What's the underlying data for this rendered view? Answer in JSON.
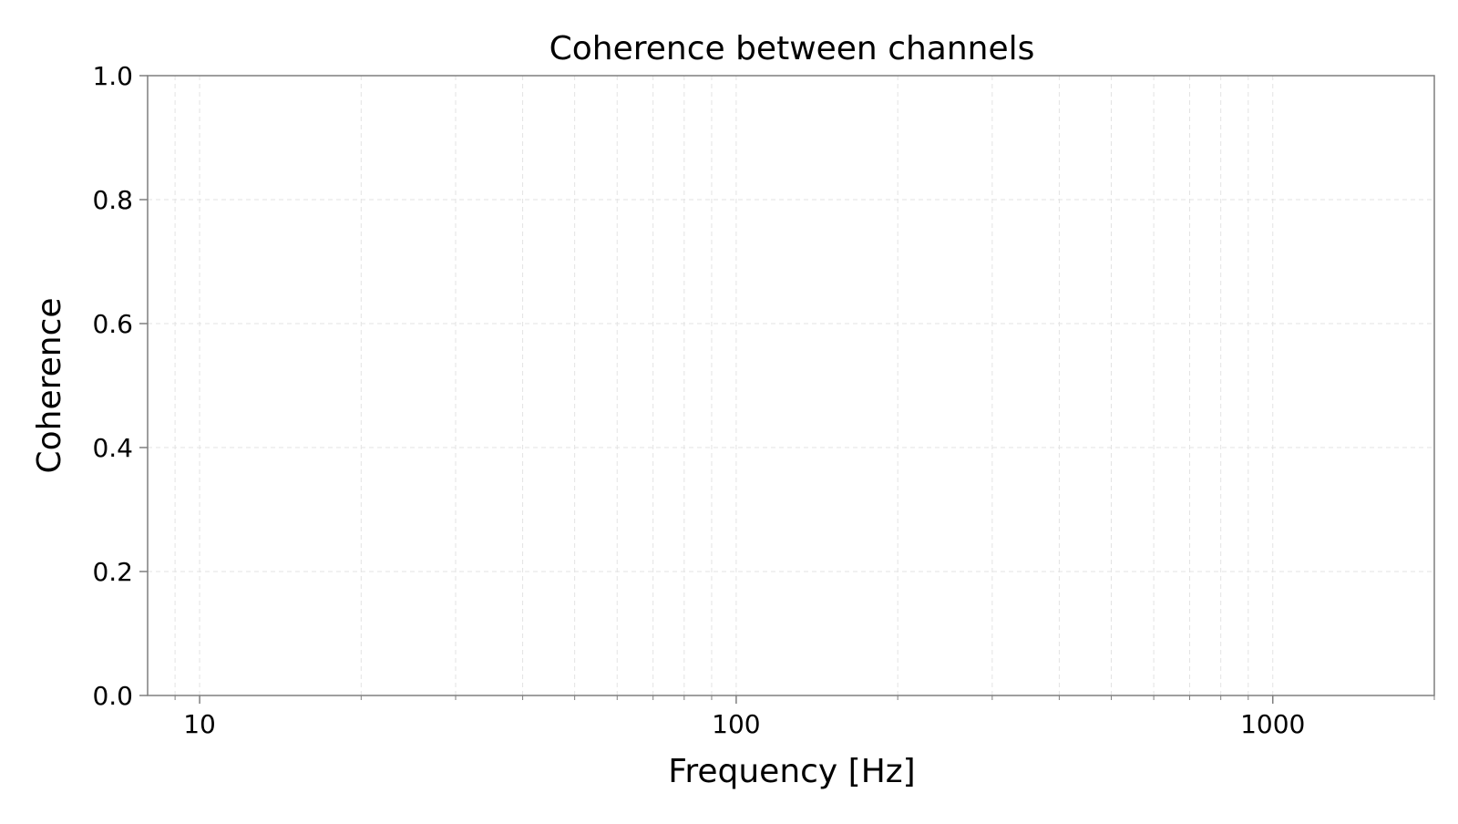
{
  "chart_data": {
    "type": "line",
    "title": "Coherence between channels",
    "xlabel": "Frequency [Hz]",
    "ylabel": "Coherence",
    "x_scale": "log",
    "xlim": [
      8,
      2000
    ],
    "ylim": [
      0.0,
      1.0
    ],
    "x_ticks": [
      {
        "value": 10,
        "label": "10"
      },
      {
        "value": 100,
        "label": "100"
      },
      {
        "value": 1000,
        "label": "1000"
      }
    ],
    "y_ticks": [
      {
        "value": 0.0,
        "label": "0.0"
      },
      {
        "value": 0.2,
        "label": "0.2"
      },
      {
        "value": 0.4,
        "label": "0.4"
      },
      {
        "value": 0.6,
        "label": "0.6"
      },
      {
        "value": 0.8,
        "label": "0.8"
      },
      {
        "value": 1.0,
        "label": "1.0"
      }
    ],
    "x_minor_ticks": [
      9,
      20,
      30,
      40,
      50,
      60,
      70,
      80,
      90,
      200,
      300,
      400,
      500,
      600,
      700,
      800,
      900,
      2000
    ],
    "grid": true,
    "grid_style": "dashed",
    "series": []
  },
  "colors": {
    "axis": "#7f7f7f",
    "grid": "#e3e3e3",
    "text": "#000000"
  }
}
